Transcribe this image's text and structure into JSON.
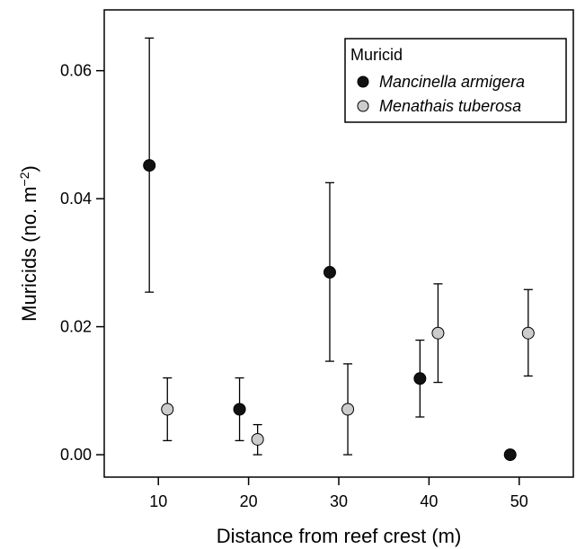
{
  "chart_data": {
    "type": "scatter",
    "xlabel": "Distance from reef crest (m)",
    "ylabel": "Muricids (no. m",
    "ylabel_sup": "−2",
    "ylabel_close": ")",
    "xlim": [
      4,
      56
    ],
    "ylim": [
      -0.0035,
      0.0695
    ],
    "xticks": [
      10,
      20,
      30,
      40,
      50
    ],
    "yticks": [
      0.0,
      0.02,
      0.04,
      0.06
    ],
    "ytick_labels": [
      "0.00",
      "0.02",
      "0.04",
      "0.06"
    ],
    "xtick_labels": [
      "10",
      "20",
      "30",
      "40",
      "50"
    ],
    "grid": false,
    "legend": {
      "title": "Muricid",
      "placement": "top-right"
    },
    "series": [
      {
        "name": "Mancinella armigera",
        "color": "#111111",
        "points": [
          {
            "x": 9,
            "y": 0.0452,
            "lo": 0.0254,
            "hi": 0.0651
          },
          {
            "x": 19,
            "y": 0.0071,
            "lo": 0.0022,
            "hi": 0.012
          },
          {
            "x": 29,
            "y": 0.0285,
            "lo": 0.0146,
            "hi": 0.0425
          },
          {
            "x": 39,
            "y": 0.0119,
            "lo": 0.0059,
            "hi": 0.0179
          },
          {
            "x": 49,
            "y": 0.0,
            "lo": null,
            "hi": null
          }
        ]
      },
      {
        "name": "Menathais tuberosa",
        "color": "#cccccc",
        "points": [
          {
            "x": 11,
            "y": 0.0071,
            "lo": 0.0022,
            "hi": 0.012
          },
          {
            "x": 21,
            "y": 0.0024,
            "lo": 0.0,
            "hi": 0.0047
          },
          {
            "x": 31,
            "y": 0.0071,
            "lo": 0.0,
            "hi": 0.0142
          },
          {
            "x": 41,
            "y": 0.019,
            "lo": 0.0113,
            "hi": 0.0267
          },
          {
            "x": 51,
            "y": 0.019,
            "lo": 0.0123,
            "hi": 0.0258
          }
        ]
      }
    ]
  }
}
